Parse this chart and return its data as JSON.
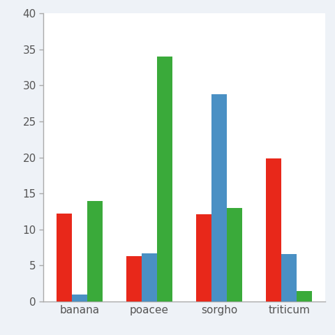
{
  "categories": [
    "banana",
    "poacee",
    "sorgho",
    "triticum"
  ],
  "series": {
    "red": [
      12.2,
      6.3,
      12.1,
      19.9
    ],
    "blue": [
      1.0,
      6.7,
      28.8,
      6.6
    ],
    "green": [
      14.0,
      34.0,
      13.0,
      1.5
    ]
  },
  "colors": {
    "red": "#e8281a",
    "blue": "#4a90c4",
    "green": "#3aaa3a"
  },
  "ylim": [
    0,
    40
  ],
  "yticks": [
    0,
    5,
    10,
    15,
    20,
    25,
    30,
    35,
    40
  ],
  "outer_bg": "#eef2f7",
  "plot_bg": "#ffffff",
  "bar_width": 0.22,
  "tick_color": "#555555",
  "label_fontsize": 11,
  "spine_color": "#aaaaaa"
}
